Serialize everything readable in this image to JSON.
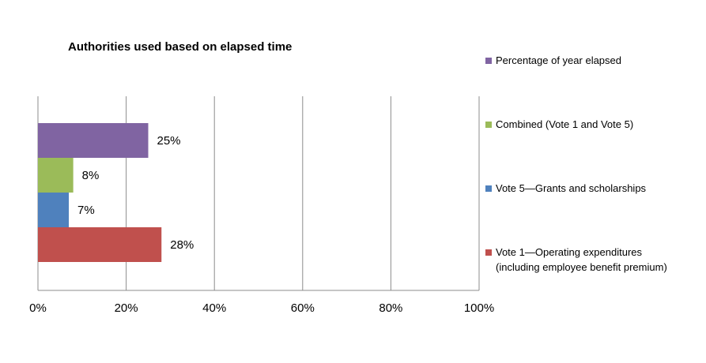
{
  "chart_data": {
    "type": "bar",
    "orientation": "horizontal",
    "title": "Authorities used based on elapsed time",
    "xlabel": "",
    "ylabel": "",
    "xlim": [
      0,
      100
    ],
    "x_ticks": [
      "0%",
      "20%",
      "40%",
      "60%",
      "80%",
      "100%"
    ],
    "grid": "vertical",
    "legend_position": "right",
    "series": [
      {
        "name": "Percentage of year elapsed",
        "value": 25,
        "label": "25%",
        "color": "#8064a2"
      },
      {
        "name": "Combined (Vote 1 and Vote 5)",
        "value": 8,
        "label": "8%",
        "color": "#9bbb59"
      },
      {
        "name": "Vote 5—Grants and scholarships",
        "value": 7,
        "label": "7%",
        "color": "#4f81bd"
      },
      {
        "name": "Vote 1—Operating expenditures (including employee benefit premium)",
        "lines": [
          "Vote 1—Operating expenditures",
          "(including employee benefit premium)"
        ],
        "value": 28,
        "label": "28%",
        "color": "#c0504d"
      }
    ]
  }
}
